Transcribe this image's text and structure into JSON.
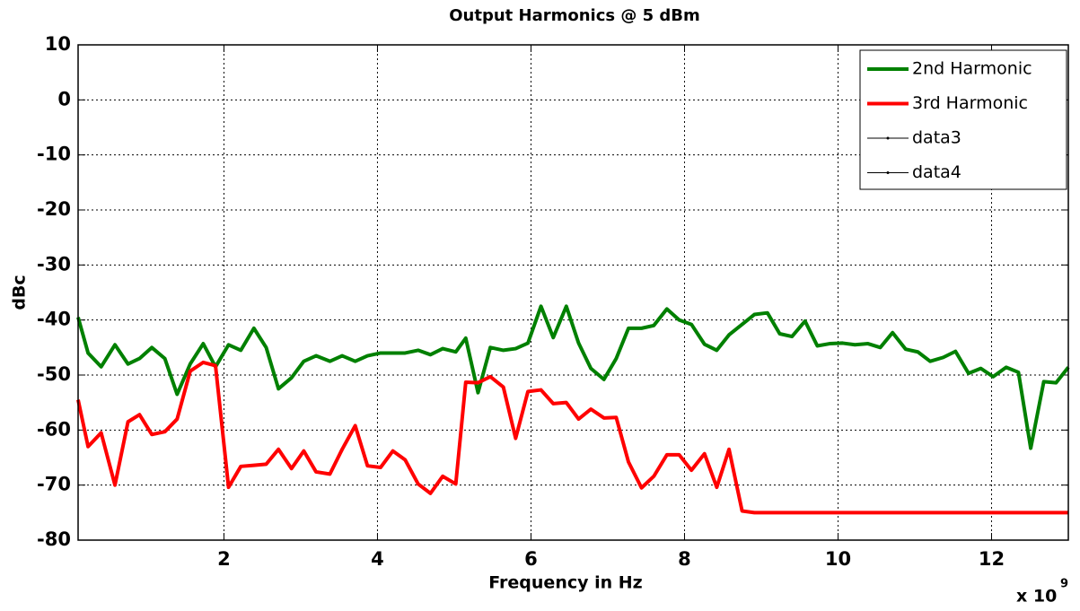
{
  "chart_data": {
    "type": "line",
    "title": "Output Harmonics @ 5 dBm",
    "x_label": "Frequency in Hz",
    "y_label": "dBc",
    "x_multiplier": "x 10",
    "x_exponent": "9",
    "xlim": [
      100000000,
      13000000000
    ],
    "ylim": [
      -80,
      10
    ],
    "xticks": [
      {
        "value": 2000000000,
        "label": "2"
      },
      {
        "value": 4000000000,
        "label": "4"
      },
      {
        "value": 6000000000,
        "label": "6"
      },
      {
        "value": 8000000000,
        "label": "8"
      },
      {
        "value": 10000000000,
        "label": "10"
      },
      {
        "value": 12000000000,
        "label": "12"
      }
    ],
    "yticks": [
      -80,
      -70,
      -60,
      -50,
      -40,
      -30,
      -20,
      -10,
      0,
      10
    ],
    "grid": true,
    "legend": "upper right",
    "x": [
      100000000,
      230000000,
      400000000,
      580000000,
      750000000,
      900000000,
      1060000000,
      1230000000,
      1390000000,
      1560000000,
      1730000000,
      1890000000,
      2060000000,
      2220000000,
      2390000000,
      2550000000,
      2710000000,
      2880000000,
      3040000000,
      3200000000,
      3380000000,
      3540000000,
      3710000000,
      3870000000,
      4040000000,
      4200000000,
      4360000000,
      4530000000,
      4690000000,
      4850000000,
      5020000000,
      5150000000,
      5310000000,
      5470000000,
      5640000000,
      5800000000,
      5960000000,
      6130000000,
      6290000000,
      6460000000,
      6620000000,
      6780000000,
      6950000000,
      7110000000,
      7270000000,
      7440000000,
      7600000000,
      7770000000,
      7930000000,
      8090000000,
      8260000000,
      8420000000,
      8580000000,
      8750000000,
      8910000000,
      9080000000,
      9240000000,
      9400000000,
      9570000000,
      9730000000,
      9890000000,
      10060000000,
      10220000000,
      10390000000,
      10550000000,
      10710000000,
      10880000000,
      11040000000,
      11200000000,
      11370000000,
      11530000000,
      11700000000,
      11860000000,
      12020000000,
      12190000000,
      12350000000,
      12510000000,
      12680000000,
      12840000000,
      13000000000
    ],
    "series": [
      {
        "name": "2nd Harmonic",
        "color": "#008000",
        "values": [
          -39.5,
          -46,
          -48.5,
          -44.5,
          -48,
          -47,
          -45,
          -47,
          -53.5,
          -48,
          -44.3,
          -48.5,
          -44.5,
          -45.5,
          -41.5,
          -45,
          -52.5,
          -50.5,
          -47.5,
          -46.5,
          -47.5,
          -46.5,
          -47.5,
          -46.5,
          -46,
          -46,
          -46,
          -45.5,
          -46.3,
          -45.2,
          -45.8,
          -43.3,
          -53.2,
          -45,
          -45.5,
          -45.2,
          -44.2,
          -37.5,
          -43.2,
          -37.5,
          -44.2,
          -48.8,
          -50.8,
          -47,
          -41.5,
          -41.5,
          -41,
          -38,
          -40,
          -40.8,
          -44.4,
          -45.5,
          -42.7,
          -40.8,
          -39,
          -38.7,
          -42.5,
          -43,
          -40.2,
          -44.7,
          -44.3,
          -44.2,
          -44.5,
          -44.3,
          -45,
          -42.3,
          -45.3,
          -45.8,
          -47.5,
          -46.8,
          -45.7,
          -49.7,
          -48.8,
          -50.3,
          -48.6,
          -49.5,
          -63.3,
          -51.2,
          -51.4,
          -48.6
        ]
      },
      {
        "name": "3rd Harmonic",
        "color": "#ff0000",
        "values": [
          -54.5,
          -63,
          -60.5,
          -70,
          -58.5,
          -57.2,
          -60.8,
          -60.3,
          -58,
          -49.3,
          -47.7,
          -48.3,
          -70.4,
          -66.6,
          -66.4,
          -66.2,
          -63.5,
          -67,
          -63.8,
          -67.6,
          -68,
          -63.5,
          -59.2,
          -66.5,
          -66.8,
          -63.8,
          -65.4,
          -69.8,
          -71.5,
          -68.4,
          -69.8,
          -51.3,
          -51.4,
          -50.3,
          -52.2,
          -61.5,
          -53,
          -52.7,
          -55.2,
          -55,
          -58,
          -56.2,
          -57.8,
          -57.7,
          -65.8,
          -70.5,
          -68.4,
          -64.5,
          -64.5,
          -67.3,
          -64.3,
          -70.4,
          -63.5,
          -74.7,
          -75,
          -75,
          -75,
          -75,
          -75,
          -75,
          -75,
          -75,
          -75,
          -75,
          -75,
          -75,
          -75,
          -75,
          -75,
          -75,
          -75,
          -75,
          -75,
          -75,
          -75,
          -75,
          -75,
          -75,
          -75,
          -75
        ]
      },
      {
        "name": "data3",
        "color": "#000000",
        "values": [
          null,
          null,
          null,
          null,
          null,
          null,
          null,
          null,
          null,
          null,
          null,
          null,
          null,
          null,
          null,
          null,
          null,
          null,
          null,
          null,
          null,
          null,
          null,
          null,
          null,
          null,
          null,
          null,
          null,
          null,
          null,
          null,
          null,
          null,
          null,
          null,
          null,
          null,
          null,
          null,
          null,
          null,
          null,
          null,
          null,
          null,
          null,
          null,
          null,
          null,
          null,
          null,
          null,
          null,
          null,
          null,
          null,
          null,
          null,
          null,
          null,
          null,
          null,
          null,
          null,
          null,
          null,
          null,
          null,
          null,
          null,
          null,
          null,
          null,
          null,
          null,
          null,
          null,
          null,
          null
        ]
      },
      {
        "name": "data4",
        "color": "#000000",
        "values": [
          null,
          null,
          null,
          null,
          null,
          null,
          null,
          null,
          null,
          null,
          null,
          null,
          null,
          null,
          null,
          null,
          null,
          null,
          null,
          null,
          null,
          null,
          null,
          null,
          null,
          null,
          null,
          null,
          null,
          null,
          null,
          null,
          null,
          null,
          null,
          null,
          null,
          null,
          null,
          null,
          null,
          null,
          null,
          null,
          null,
          null,
          null,
          null,
          null,
          null,
          null,
          null,
          null,
          null,
          null,
          null,
          null,
          null,
          null,
          null,
          null,
          null,
          null,
          null,
          null,
          null,
          null,
          null,
          null,
          null,
          null,
          null,
          null,
          null,
          null,
          null,
          null,
          null,
          null,
          null
        ]
      }
    ]
  }
}
